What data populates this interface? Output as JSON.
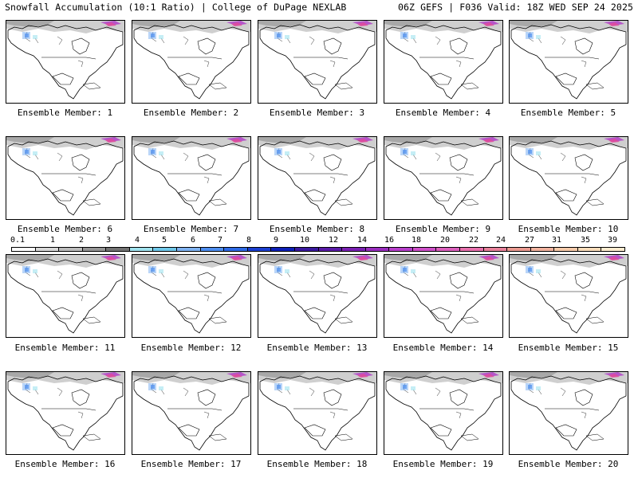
{
  "header": {
    "title_left": "Snowfall Accumulation (10:1 Ratio) | College of DuPage NEXLAB",
    "title_right": "06Z GEFS | F036 Valid: 18Z WED SEP 24 2025"
  },
  "legend": {
    "labels": [
      "0.1",
      "1",
      "2",
      "3",
      "4",
      "5",
      "6",
      "7",
      "8",
      "9",
      "10",
      "12",
      "14",
      "16",
      "18",
      "20",
      "22",
      "24",
      "27",
      "31",
      "35",
      "39"
    ],
    "colors": [
      "#ffffff",
      "#d9d9d9",
      "#bdbdbd",
      "#969696",
      "#737373",
      "#9fe2ee",
      "#6fc8ea",
      "#7fb3f2",
      "#4d8ef0",
      "#2e6ae6",
      "#1b3fd1",
      "#0d1fb8",
      "#3a189f",
      "#5a1aa8",
      "#7a1fb3",
      "#9a2dbf",
      "#b83ecb",
      "#cf4fc9",
      "#dc5fbd",
      "#e870ad",
      "#e8809a",
      "#eb9a90",
      "#f1b29e",
      "#f6caa9",
      "#f9dcba",
      "#fdeccf"
    ]
  },
  "panels": [
    {
      "caption": "Ensemble Member: 1"
    },
    {
      "caption": "Ensemble Member: 2"
    },
    {
      "caption": "Ensemble Member: 3"
    },
    {
      "caption": "Ensemble Member: 4"
    },
    {
      "caption": "Ensemble Member: 5"
    },
    {
      "caption": "Ensemble Member: 6"
    },
    {
      "caption": "Ensemble Member: 7"
    },
    {
      "caption": "Ensemble Member: 8"
    },
    {
      "caption": "Ensemble Member: 9"
    },
    {
      "caption": "Ensemble Member: 10"
    },
    {
      "caption": "Ensemble Member: 11"
    },
    {
      "caption": "Ensemble Member: 12"
    },
    {
      "caption": "Ensemble Member: 13"
    },
    {
      "caption": "Ensemble Member: 14"
    },
    {
      "caption": "Ensemble Member: 15"
    },
    {
      "caption": "Ensemble Member: 16"
    },
    {
      "caption": "Ensemble Member: 17"
    },
    {
      "caption": "Ensemble Member: 18"
    },
    {
      "caption": "Ensemble Member: 19"
    },
    {
      "caption": "Ensemble Member: 20"
    }
  ]
}
